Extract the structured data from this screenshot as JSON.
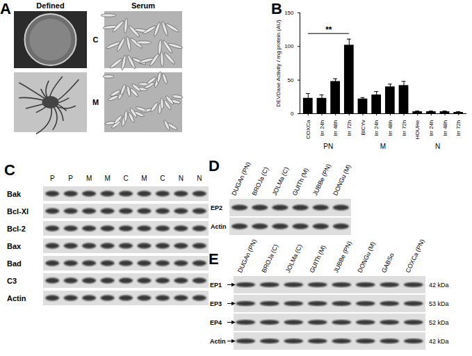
{
  "panels": {
    "A": {
      "label": "A",
      "columns": [
        "Defined",
        "Serum"
      ],
      "rows": [
        "C",
        "M"
      ]
    },
    "B": {
      "label": "B"
    },
    "C": {
      "label": "C",
      "lanes": [
        "P",
        "P",
        "M",
        "M",
        "C",
        "M",
        "C",
        "N",
        "N"
      ],
      "rows": [
        "Bak",
        "Bcl-Xl",
        "Bcl-2",
        "Bax",
        "Bad",
        "C3",
        "Actin"
      ]
    },
    "D": {
      "label": "D",
      "lanes": [
        "DUGAn (PN)",
        "BROJa (C)",
        "JOLMa (C)",
        "GUITh (M)",
        "JUBBe (PN)",
        "DONGu (M)"
      ],
      "rows": [
        "EP2",
        "Actin"
      ]
    },
    "E": {
      "label": "E",
      "lanes": [
        "DUGAn (PN)",
        "BROJa (C)",
        "JOLMa (C)",
        "GUITh (M)",
        "JUBBe (PN)",
        "DONGu (M)",
        "GABSo",
        "COXCa (PN)"
      ],
      "rows": [
        {
          "name": "EP1",
          "size": "42 kDa"
        },
        {
          "name": "EP3",
          "size": "53 kDa"
        },
        {
          "name": "EP4",
          "size": "52 kDa"
        },
        {
          "name": "Actin",
          "size": "42 kDa"
        }
      ]
    }
  },
  "chart_data": {
    "type": "bar",
    "ylabel": "DEVDase Activity / mg protein (AU)",
    "categories": [
      "COXCa",
      "Irr 24h",
      "Irr 48h",
      "Irr 72h",
      "BICYv",
      "Irr 24h",
      "Irr 48h",
      "Irr 72h",
      "HOUHe",
      "Irr 24h",
      "Irr 48h",
      "Irr 72h"
    ],
    "values": [
      23,
      23,
      48,
      102,
      22,
      28,
      40,
      42,
      3,
      3,
      3,
      2
    ],
    "errors": [
      7,
      5,
      4,
      9,
      2,
      5,
      4,
      6,
      1,
      1,
      1,
      1
    ],
    "groups": [
      "PN",
      "M",
      "N"
    ],
    "annotations": [
      {
        "text": "**",
        "from": 0,
        "to": 3
      }
    ],
    "color": "#000000",
    "ylim": [
      0,
      150
    ],
    "yticks": [
      0,
      50,
      100,
      150
    ]
  }
}
